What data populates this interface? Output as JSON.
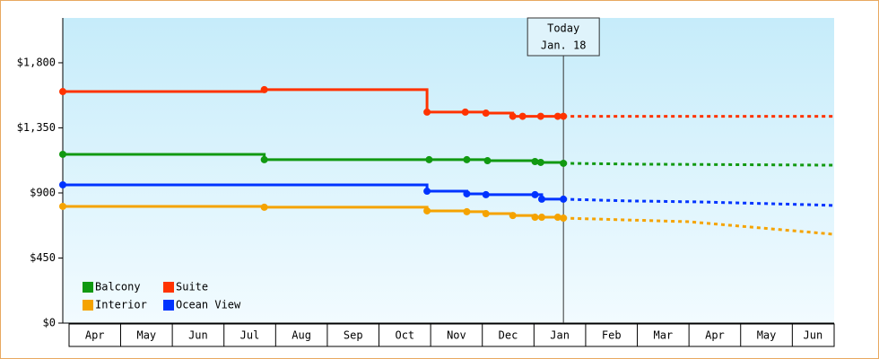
{
  "chart_data": {
    "type": "step-line",
    "xlim": [
      -0.12,
      14.81
    ],
    "xticks": [
      {
        "value": 0.5,
        "label": "Apr"
      },
      {
        "value": 1.5,
        "label": "May"
      },
      {
        "value": 2.5,
        "label": "Jun"
      },
      {
        "value": 3.5,
        "label": "Jul"
      },
      {
        "value": 4.5,
        "label": "Aug"
      },
      {
        "value": 5.5,
        "label": "Sep"
      },
      {
        "value": 6.5,
        "label": "Oct"
      },
      {
        "value": 7.5,
        "label": "Nov"
      },
      {
        "value": 8.5,
        "label": "Dec"
      },
      {
        "value": 9.5,
        "label": "Jan"
      },
      {
        "value": 10.5,
        "label": "Feb"
      },
      {
        "value": 11.5,
        "label": "Mar"
      },
      {
        "value": 12.5,
        "label": "Apr"
      },
      {
        "value": 13.5,
        "label": "May"
      },
      {
        "value": 14.4,
        "label": "Jun"
      }
    ],
    "ylim": [
      0,
      2110
    ],
    "yticks": [
      {
        "value": 0,
        "label": "$0"
      },
      {
        "value": 450,
        "label": "$450"
      },
      {
        "value": 900,
        "label": "$900"
      },
      {
        "value": 1350,
        "label": "$1,350"
      },
      {
        "value": 1800,
        "label": "$1,800"
      }
    ],
    "today": {
      "x": 9.57,
      "label": [
        "Today",
        "Jan. 18"
      ]
    },
    "legend": "lower left",
    "series": [
      {
        "name": "Balcony",
        "color": "#119911",
        "x": [
          -0.12,
          3.78,
          6.97,
          7.7,
          8.1,
          9.02,
          9.13,
          9.57,
          11.0,
          14.81
        ],
        "values": [
          1167,
          1130,
          1130,
          1130,
          1123,
          1117,
          1111,
          1105,
          1099,
          1092
        ]
      },
      {
        "name": "Suite",
        "color": "#ff3300",
        "x": [
          -0.12,
          3.78,
          6.93,
          7.67,
          8.07,
          8.59,
          8.78,
          9.13,
          9.46,
          9.57,
          14.81
        ],
        "values": [
          1601,
          1614,
          1459,
          1459,
          1452,
          1430,
          1430,
          1430,
          1430,
          1430,
          1430
        ]
      },
      {
        "name": "Interior",
        "color": "#f5a300",
        "x": [
          -0.12,
          3.78,
          6.93,
          7.7,
          8.07,
          8.59,
          9.02,
          9.15,
          9.46,
          9.57,
          12.0,
          14.81
        ],
        "values": [
          807,
          801,
          776,
          770,
          757,
          744,
          732,
          732,
          732,
          726,
          701,
          614
        ]
      },
      {
        "name": "Ocean View",
        "color": "#0033ff",
        "x": [
          -0.12,
          6.93,
          7.7,
          8.07,
          9.02,
          9.15,
          9.57,
          10.82,
          12.2,
          14.29,
          14.81
        ],
        "values": [
          956,
          912,
          894,
          888,
          888,
          857,
          857,
          845,
          838,
          819,
          813
        ]
      }
    ]
  }
}
